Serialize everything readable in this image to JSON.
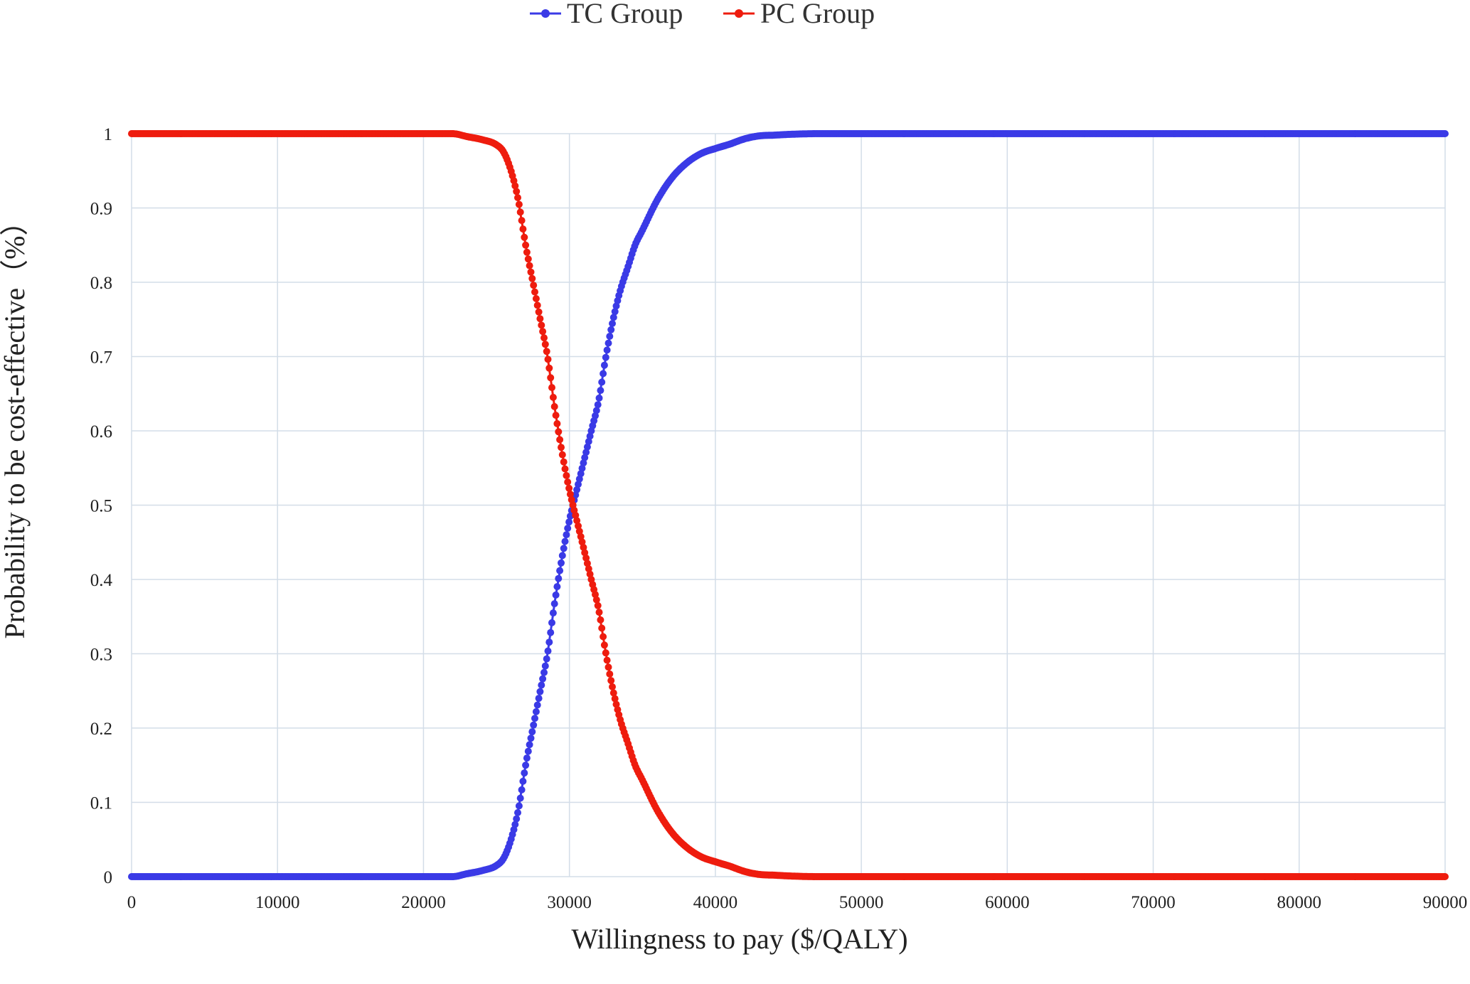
{
  "chart_data": {
    "type": "line",
    "title": "",
    "xlabel": "Willingness to pay ($/QALY)",
    "ylabel": "Probability to be cost-effective（%）",
    "xlim": [
      0,
      90000
    ],
    "ylim": [
      0,
      1
    ],
    "grid": true,
    "legend_position": "top-center",
    "x_ticks": [
      "0",
      "10000",
      "20000",
      "30000",
      "40000",
      "50000",
      "60000",
      "70000",
      "80000",
      "90000"
    ],
    "y_ticks": [
      "0",
      "0.1",
      "0.2",
      "0.3",
      "0.4",
      "0.5",
      "0.6",
      "0.7",
      "0.8",
      "0.9",
      "1"
    ],
    "x": [
      0,
      5000,
      10000,
      15000,
      20000,
      22000,
      23000,
      24000,
      25000,
      25500,
      26000,
      26500,
      27000,
      27500,
      28000,
      28500,
      29000,
      29500,
      30000,
      30500,
      31000,
      31500,
      32000,
      32500,
      33000,
      33500,
      34000,
      34500,
      35000,
      36000,
      37000,
      38000,
      39000,
      40000,
      41000,
      42000,
      43000,
      44000,
      45000,
      47000,
      50000,
      60000,
      70000,
      80000,
      90000
    ],
    "series": [
      {
        "name": "TC Group",
        "color": "#3a3ae6",
        "values": [
          0,
          0,
          0,
          0,
          0,
          0,
          0.004,
          0.008,
          0.015,
          0.025,
          0.05,
          0.09,
          0.15,
          0.2,
          0.25,
          0.3,
          0.37,
          0.43,
          0.48,
          0.52,
          0.56,
          0.6,
          0.64,
          0.7,
          0.75,
          0.79,
          0.82,
          0.85,
          0.87,
          0.91,
          0.94,
          0.96,
          0.973,
          0.98,
          0.986,
          0.993,
          0.997,
          0.998,
          0.999,
          1,
          1,
          1,
          1,
          1,
          1
        ]
      },
      {
        "name": "PC Group",
        "color": "#ee1c0e",
        "values": [
          1,
          1,
          1,
          1,
          1,
          1,
          0.996,
          0.992,
          0.985,
          0.975,
          0.95,
          0.91,
          0.85,
          0.8,
          0.75,
          0.7,
          0.63,
          0.57,
          0.52,
          0.48,
          0.44,
          0.4,
          0.36,
          0.3,
          0.25,
          0.21,
          0.18,
          0.15,
          0.13,
          0.09,
          0.06,
          0.04,
          0.027,
          0.02,
          0.014,
          0.007,
          0.003,
          0.002,
          0.001,
          0,
          0,
          0,
          0,
          0,
          0
        ]
      }
    ]
  }
}
